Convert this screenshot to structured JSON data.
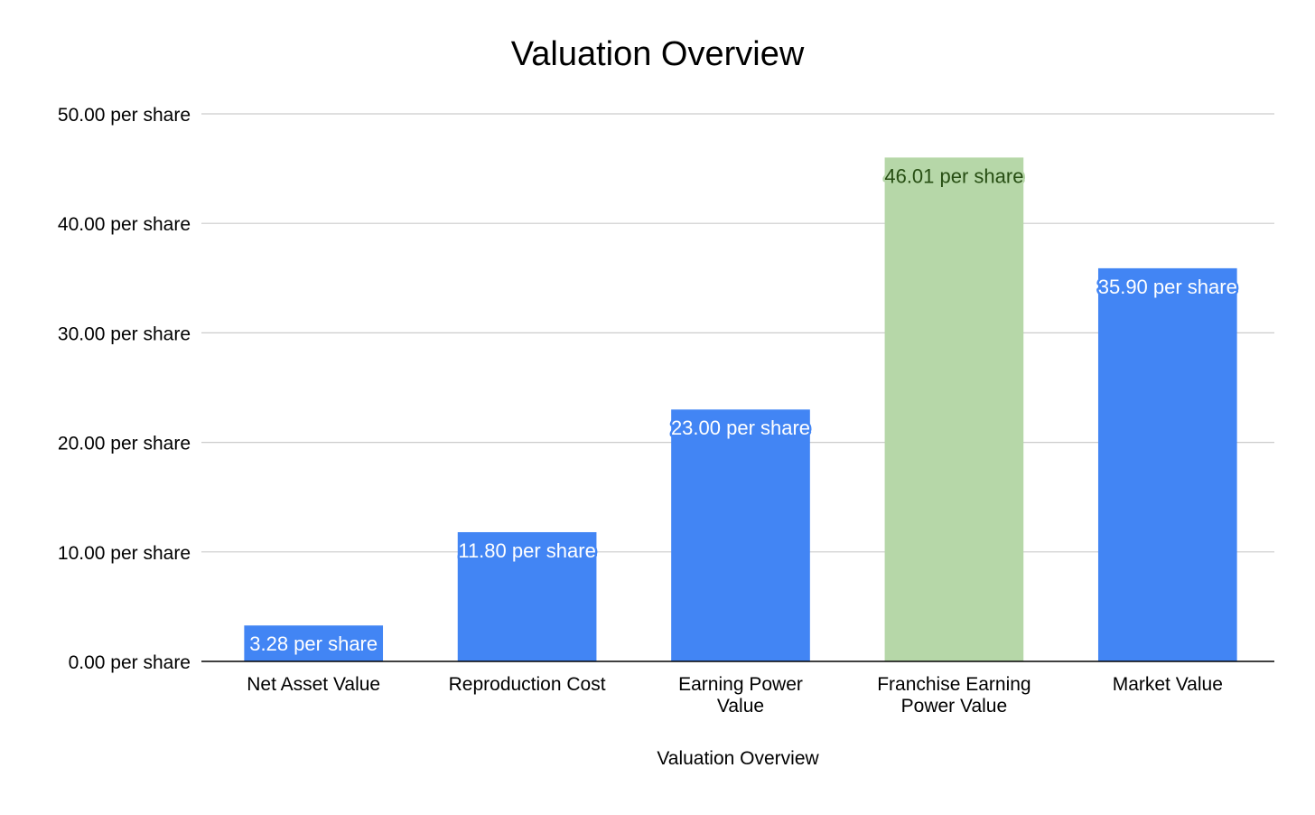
{
  "chart_data": {
    "type": "bar",
    "title": "Valuation Overview",
    "xlabel": "Valuation Overview",
    "ylabel": "",
    "ylim": [
      0,
      50
    ],
    "yticks": [
      "0.00 per share",
      "10.00 per share",
      "20.00 per share",
      "30.00 per share",
      "40.00 per share",
      "50.00 per share"
    ],
    "ytick_values": [
      0,
      10,
      20,
      30,
      40,
      50
    ],
    "categories": [
      [
        "Net Asset Value"
      ],
      [
        "Reproduction Cost"
      ],
      [
        "Earning Power",
        "Value"
      ],
      [
        "Franchise Earning",
        "Power Value"
      ],
      [
        "Market Value"
      ]
    ],
    "values": [
      3.28,
      11.8,
      23.0,
      46.01,
      35.9
    ],
    "data_labels": [
      "3.28 per share",
      "11.80 per share",
      "23.00 per share",
      "46.01 per share",
      "35.90 per share"
    ],
    "bar_colors": [
      "#4285f4",
      "#4285f4",
      "#4285f4",
      "#b6d7a8",
      "#4285f4"
    ],
    "label_colors": [
      "#ffffff",
      "#ffffff",
      "#ffffff",
      "#274e13",
      "#ffffff"
    ],
    "label_outline_colors": [
      "#4285f4",
      "#4285f4",
      "#4285f4",
      "#b6d7a8",
      "#4285f4"
    ],
    "grid": true,
    "legend": "none"
  }
}
